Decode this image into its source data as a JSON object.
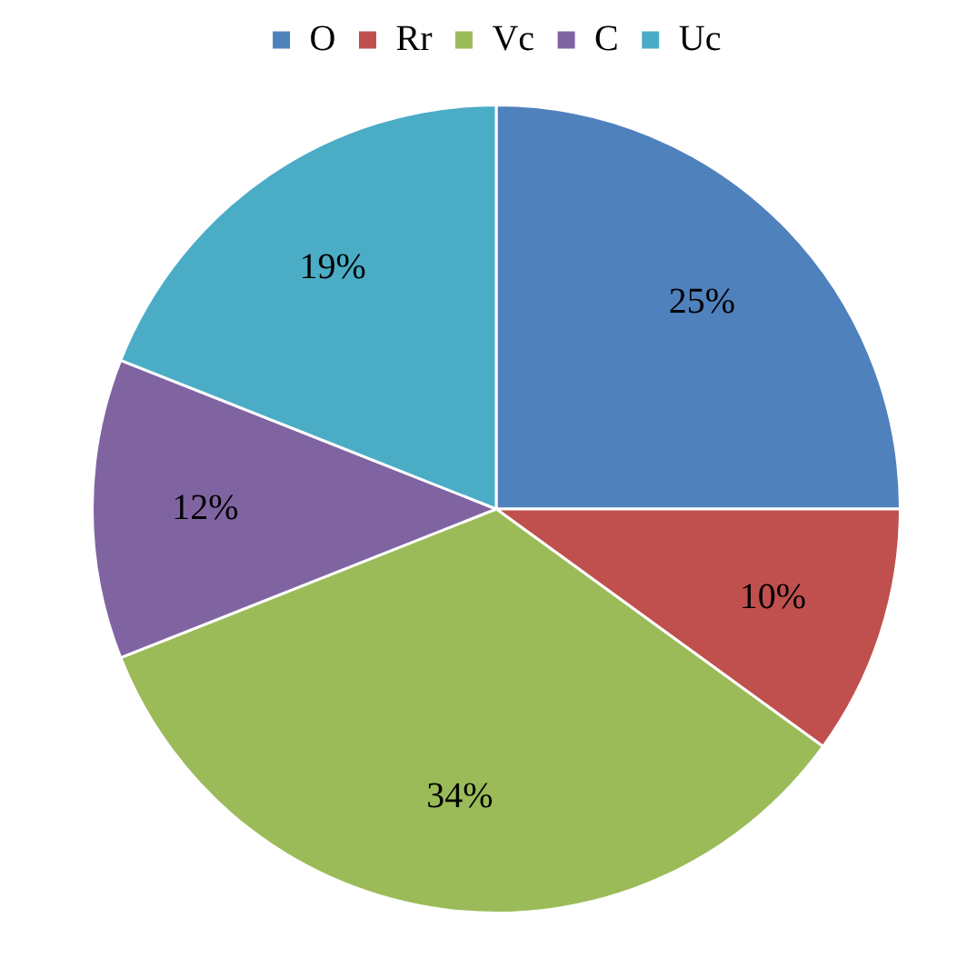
{
  "chart_data": {
    "type": "pie",
    "categories": [
      "O",
      "Rr",
      "Vc",
      "C",
      "Uc"
    ],
    "values": [
      25,
      10,
      34,
      12,
      19
    ],
    "colors": [
      "#4f81bd",
      "#c0504d",
      "#9bbb59",
      "#8064a2",
      "#4bacc6"
    ],
    "value_labels": [
      "25%",
      "10%",
      "34%",
      "12%",
      "19%"
    ],
    "legend": "top"
  }
}
